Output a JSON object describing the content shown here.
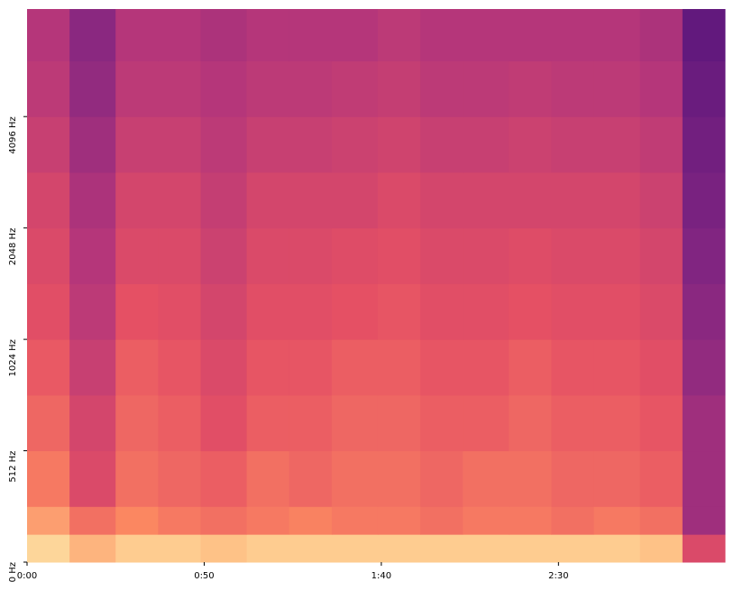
{
  "chart_data": {
    "type": "spectrogram",
    "colormap": "magma",
    "yscale": "symlog",
    "linthresh": 512,
    "xlim": [
      0,
      197
    ],
    "ylim": [
      0,
      8000
    ],
    "xticks": [
      {
        "value": 0,
        "label": "0:00"
      },
      {
        "value": 50,
        "label": "0:50"
      },
      {
        "value": 100,
        "label": "1:40"
      },
      {
        "value": 150,
        "label": "2:30"
      }
    ],
    "yticks": [
      {
        "value": 0,
        "label": "0 Hz"
      },
      {
        "value": 512,
        "label": "512 Hz"
      },
      {
        "value": 1024,
        "label": "1024 Hz"
      },
      {
        "value": 2048,
        "label": "2048 Hz"
      },
      {
        "value": 4096,
        "label": "4096 Hz"
      }
    ],
    "x_edges": [
      0,
      12,
      25,
      37,
      49,
      62,
      74,
      86,
      99,
      111,
      123,
      136,
      148,
      160,
      173,
      185,
      197
    ],
    "y_edges": [
      0,
      128,
      256,
      512,
      724,
      1024,
      1448,
      2048,
      2896,
      4096,
      5793,
      8000
    ],
    "values": [
      [
        0.92,
        0.85,
        0.9,
        0.9,
        0.88,
        0.9,
        0.9,
        0.9,
        0.9,
        0.9,
        0.9,
        0.9,
        0.9,
        0.9,
        0.88,
        0.6
      ],
      [
        0.8,
        0.7,
        0.75,
        0.72,
        0.7,
        0.72,
        0.74,
        0.72,
        0.72,
        0.7,
        0.72,
        0.72,
        0.7,
        0.72,
        0.7,
        0.45
      ],
      [
        0.72,
        0.6,
        0.7,
        0.68,
        0.66,
        0.7,
        0.68,
        0.7,
        0.7,
        0.68,
        0.7,
        0.7,
        0.68,
        0.68,
        0.66,
        0.45
      ],
      [
        0.68,
        0.58,
        0.68,
        0.66,
        0.62,
        0.66,
        0.66,
        0.68,
        0.68,
        0.66,
        0.66,
        0.68,
        0.66,
        0.66,
        0.64,
        0.45
      ],
      [
        0.65,
        0.55,
        0.66,
        0.64,
        0.6,
        0.64,
        0.64,
        0.66,
        0.66,
        0.64,
        0.64,
        0.66,
        0.64,
        0.64,
        0.62,
        0.42
      ],
      [
        0.62,
        0.52,
        0.63,
        0.62,
        0.58,
        0.62,
        0.62,
        0.63,
        0.64,
        0.62,
        0.62,
        0.63,
        0.62,
        0.62,
        0.6,
        0.4
      ],
      [
        0.6,
        0.5,
        0.6,
        0.6,
        0.56,
        0.6,
        0.6,
        0.61,
        0.62,
        0.6,
        0.6,
        0.61,
        0.6,
        0.6,
        0.58,
        0.38
      ],
      [
        0.58,
        0.48,
        0.58,
        0.58,
        0.54,
        0.58,
        0.58,
        0.58,
        0.6,
        0.58,
        0.58,
        0.58,
        0.58,
        0.58,
        0.56,
        0.36
      ],
      [
        0.55,
        0.45,
        0.55,
        0.55,
        0.52,
        0.55,
        0.55,
        0.56,
        0.57,
        0.55,
        0.55,
        0.56,
        0.55,
        0.55,
        0.53,
        0.34
      ],
      [
        0.52,
        0.42,
        0.52,
        0.52,
        0.5,
        0.52,
        0.52,
        0.53,
        0.54,
        0.52,
        0.52,
        0.53,
        0.52,
        0.52,
        0.5,
        0.32
      ],
      [
        0.5,
        0.4,
        0.5,
        0.5,
        0.48,
        0.5,
        0.5,
        0.5,
        0.52,
        0.5,
        0.5,
        0.5,
        0.5,
        0.5,
        0.48,
        0.3
      ]
    ]
  }
}
